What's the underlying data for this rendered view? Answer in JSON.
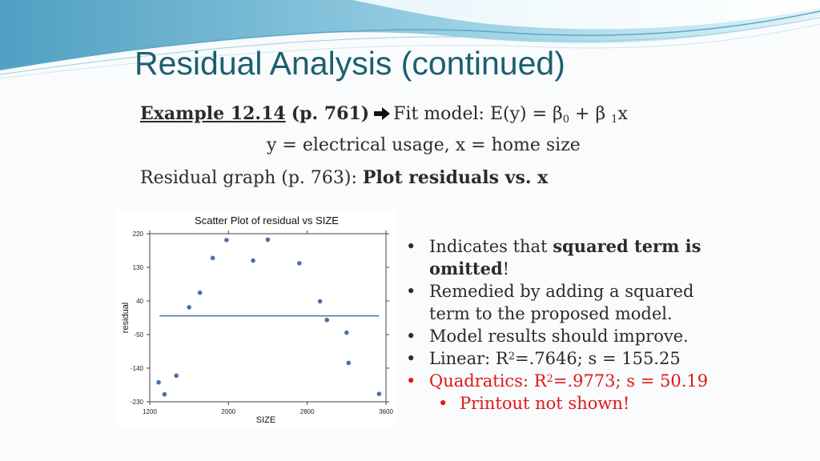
{
  "slide": {
    "title": "Residual Analysis (continued)",
    "example": {
      "label": "Example 12.14",
      "page_ref": "(p.  761)",
      "model_text": "Fit model:  E(y) = β",
      "sub0": "0",
      "plus": " + β ",
      "sub1": "1",
      "x": "x"
    },
    "definition": "y = electrical usage, x = home size",
    "residual_graph": {
      "prefix": "Residual graph (p. 763): ",
      "bold": "Plot residuals vs. x"
    },
    "bullets": {
      "b1_pre": "Indicates that ",
      "b1_bold": "squared term is omitted",
      "b1_post": "!",
      "b2": "Remedied by adding a squared term to the proposed model.",
      "b3": "Model results should improve.",
      "b4_pre": "Linear: R",
      "b4_sup": "2",
      "b4_post": "=.7646; s = 155.25",
      "b5_pre": "Quadratics: R",
      "b5_sup": "2",
      "b5_post": "=.9773; s = 50.19",
      "sub1": "Printout not shown!"
    },
    "bullet_char": "•",
    "colors": {
      "title": "#1b5f70",
      "red": "#e01818",
      "point": "#4a72a8"
    }
  },
  "chart_data": {
    "type": "scatter",
    "title": "Scatter Plot of residual vs SIZE",
    "xlabel": "SIZE",
    "ylabel": "residual",
    "xlim": [
      1200,
      3600
    ],
    "ylim": [
      -230,
      220
    ],
    "xticks": [
      1200,
      2000,
      2800,
      3600
    ],
    "yticks": [
      220,
      130,
      40,
      -50,
      -140,
      -230
    ],
    "points": [
      {
        "x": 1290,
        "y": -178
      },
      {
        "x": 1350,
        "y": -210
      },
      {
        "x": 1470,
        "y": -160
      },
      {
        "x": 1600,
        "y": 23
      },
      {
        "x": 1710,
        "y": 62
      },
      {
        "x": 1840,
        "y": 155
      },
      {
        "x": 1980,
        "y": 203
      },
      {
        "x": 2250,
        "y": 148
      },
      {
        "x": 2400,
        "y": 204
      },
      {
        "x": 2720,
        "y": 141
      },
      {
        "x": 2930,
        "y": 39
      },
      {
        "x": 3000,
        "y": -11
      },
      {
        "x": 3200,
        "y": -45
      },
      {
        "x": 3220,
        "y": -126
      },
      {
        "x": 3530,
        "y": -209
      }
    ],
    "reference_line": 0,
    "grid": false
  }
}
